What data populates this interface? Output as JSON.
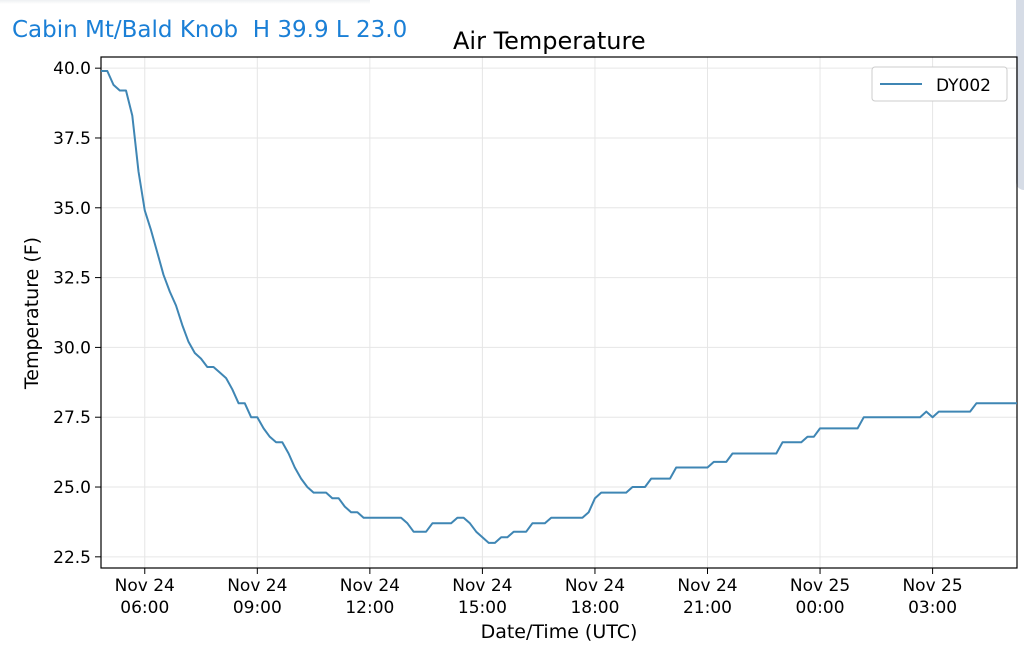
{
  "header": {
    "station_label": "Cabin Mt/Bald Knob  H 39.9 L 23.0"
  },
  "chart_data": {
    "type": "line",
    "title": "Air Temperature",
    "xlabel": "Date/Time (UTC)",
    "ylabel": "Temperature (F)",
    "ylim": [
      22.1,
      40.4
    ],
    "xlim": [
      "2023-11-24T04:50",
      "2023-11-25T05:15"
    ],
    "grid": true,
    "legend_position": "top-right",
    "y_ticks": [
      "22.5",
      "25.0",
      "27.5",
      "30.0",
      "32.5",
      "35.0",
      "37.5",
      "40.0"
    ],
    "y_tick_values": [
      22.5,
      25.0,
      27.5,
      30.0,
      32.5,
      35.0,
      37.5,
      40.0
    ],
    "x_ticks": [
      {
        "t": "2023-11-24T06:00",
        "line1": "Nov 24",
        "line2": "06:00"
      },
      {
        "t": "2023-11-24T09:00",
        "line1": "Nov 24",
        "line2": "09:00"
      },
      {
        "t": "2023-11-24T12:00",
        "line1": "Nov 24",
        "line2": "12:00"
      },
      {
        "t": "2023-11-24T15:00",
        "line1": "Nov 24",
        "line2": "15:00"
      },
      {
        "t": "2023-11-24T18:00",
        "line1": "Nov 24",
        "line2": "18:00"
      },
      {
        "t": "2023-11-24T21:00",
        "line1": "Nov 24",
        "line2": "21:00"
      },
      {
        "t": "2023-11-25T00:00",
        "line1": "Nov 25",
        "line2": "00:00"
      },
      {
        "t": "2023-11-25T03:00",
        "line1": "Nov 25",
        "line2": "03:00"
      }
    ],
    "series": [
      {
        "name": "DY002",
        "color": "#3f86b4",
        "points": [
          [
            "2023-11-24T04:50",
            39.9
          ],
          [
            "2023-11-24T05:00",
            39.9
          ],
          [
            "2023-11-24T05:10",
            39.4
          ],
          [
            "2023-11-24T05:20",
            39.2
          ],
          [
            "2023-11-24T05:30",
            39.2
          ],
          [
            "2023-11-24T05:40",
            38.3
          ],
          [
            "2023-11-24T05:50",
            36.3
          ],
          [
            "2023-11-24T06:00",
            34.9
          ],
          [
            "2023-11-24T06:10",
            34.2
          ],
          [
            "2023-11-24T06:20",
            33.4
          ],
          [
            "2023-11-24T06:30",
            32.6
          ],
          [
            "2023-11-24T06:40",
            32.0
          ],
          [
            "2023-11-24T06:50",
            31.5
          ],
          [
            "2023-11-24T07:00",
            30.8
          ],
          [
            "2023-11-24T07:10",
            30.2
          ],
          [
            "2023-11-24T07:20",
            29.8
          ],
          [
            "2023-11-24T07:30",
            29.6
          ],
          [
            "2023-11-24T07:40",
            29.3
          ],
          [
            "2023-11-24T07:50",
            29.3
          ],
          [
            "2023-11-24T08:00",
            29.1
          ],
          [
            "2023-11-24T08:10",
            28.9
          ],
          [
            "2023-11-24T08:20",
            28.5
          ],
          [
            "2023-11-24T08:30",
            28.0
          ],
          [
            "2023-11-24T08:40",
            28.0
          ],
          [
            "2023-11-24T08:50",
            27.5
          ],
          [
            "2023-11-24T09:00",
            27.5
          ],
          [
            "2023-11-24T09:10",
            27.1
          ],
          [
            "2023-11-24T09:20",
            26.8
          ],
          [
            "2023-11-24T09:30",
            26.6
          ],
          [
            "2023-11-24T09:40",
            26.6
          ],
          [
            "2023-11-24T09:50",
            26.2
          ],
          [
            "2023-11-24T10:00",
            25.7
          ],
          [
            "2023-11-24T10:10",
            25.3
          ],
          [
            "2023-11-24T10:20",
            25.0
          ],
          [
            "2023-11-24T10:30",
            24.8
          ],
          [
            "2023-11-24T10:40",
            24.8
          ],
          [
            "2023-11-24T10:50",
            24.8
          ],
          [
            "2023-11-24T11:00",
            24.6
          ],
          [
            "2023-11-24T11:10",
            24.6
          ],
          [
            "2023-11-24T11:20",
            24.3
          ],
          [
            "2023-11-24T11:30",
            24.1
          ],
          [
            "2023-11-24T11:40",
            24.1
          ],
          [
            "2023-11-24T11:50",
            23.9
          ],
          [
            "2023-11-24T12:00",
            23.9
          ],
          [
            "2023-11-24T12:30",
            23.9
          ],
          [
            "2023-11-24T12:50",
            23.9
          ],
          [
            "2023-11-24T13:00",
            23.7
          ],
          [
            "2023-11-24T13:10",
            23.4
          ],
          [
            "2023-11-24T13:30",
            23.4
          ],
          [
            "2023-11-24T13:40",
            23.7
          ],
          [
            "2023-11-24T14:10",
            23.7
          ],
          [
            "2023-11-24T14:20",
            23.9
          ],
          [
            "2023-11-24T14:30",
            23.9
          ],
          [
            "2023-11-24T14:40",
            23.7
          ],
          [
            "2023-11-24T14:50",
            23.4
          ],
          [
            "2023-11-24T15:00",
            23.2
          ],
          [
            "2023-11-24T15:10",
            23.0
          ],
          [
            "2023-11-24T15:20",
            23.0
          ],
          [
            "2023-11-24T15:30",
            23.2
          ],
          [
            "2023-11-24T15:40",
            23.2
          ],
          [
            "2023-11-24T15:50",
            23.4
          ],
          [
            "2023-11-24T16:10",
            23.4
          ],
          [
            "2023-11-24T16:20",
            23.7
          ],
          [
            "2023-11-24T16:40",
            23.7
          ],
          [
            "2023-11-24T16:50",
            23.9
          ],
          [
            "2023-11-24T17:40",
            23.9
          ],
          [
            "2023-11-24T17:50",
            24.1
          ],
          [
            "2023-11-24T18:00",
            24.6
          ],
          [
            "2023-11-24T18:10",
            24.8
          ],
          [
            "2023-11-24T18:50",
            24.8
          ],
          [
            "2023-11-24T19:00",
            25.0
          ],
          [
            "2023-11-24T19:20",
            25.0
          ],
          [
            "2023-11-24T19:30",
            25.3
          ],
          [
            "2023-11-24T20:00",
            25.3
          ],
          [
            "2023-11-24T20:10",
            25.7
          ],
          [
            "2023-11-24T21:00",
            25.7
          ],
          [
            "2023-11-24T21:10",
            25.9
          ],
          [
            "2023-11-24T21:30",
            25.9
          ],
          [
            "2023-11-24T21:40",
            26.2
          ],
          [
            "2023-11-24T22:50",
            26.2
          ],
          [
            "2023-11-24T23:00",
            26.6
          ],
          [
            "2023-11-24T23:30",
            26.6
          ],
          [
            "2023-11-24T23:40",
            26.8
          ],
          [
            "2023-11-24T23:50",
            26.8
          ],
          [
            "2023-11-25T00:00",
            27.1
          ],
          [
            "2023-11-25T01:00",
            27.1
          ],
          [
            "2023-11-25T01:10",
            27.5
          ],
          [
            "2023-11-25T02:40",
            27.5
          ],
          [
            "2023-11-25T02:50",
            27.7
          ],
          [
            "2023-11-25T03:00",
            27.5
          ],
          [
            "2023-11-25T03:10",
            27.7
          ],
          [
            "2023-11-25T04:00",
            27.7
          ],
          [
            "2023-11-25T04:10",
            28.0
          ],
          [
            "2023-11-25T05:15",
            28.0
          ]
        ]
      }
    ]
  }
}
